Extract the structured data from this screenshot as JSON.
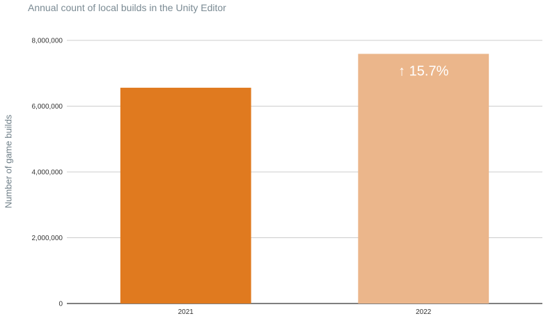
{
  "chart_data": {
    "type": "bar",
    "title": "Annual count of local builds in the Unity Editor",
    "xlabel": "",
    "ylabel": "Number of game builds",
    "categories": [
      "2021",
      "2022"
    ],
    "values": [
      6560000,
      7590000
    ],
    "bar_colors": [
      "#e07a1f",
      "#ebb68b"
    ],
    "annotations": [
      {
        "category": "2022",
        "text": "↑ 15.7%"
      }
    ],
    "ylim": [
      0,
      8000000
    ],
    "yticks": [
      0,
      2000000,
      4000000,
      6000000,
      8000000
    ],
    "ytick_labels": [
      "0",
      "2,000,000",
      "4,000,000",
      "6,000,000",
      "8,000,000"
    ],
    "grid": true,
    "legend": "none"
  },
  "colors": {
    "grid": "#cccccc",
    "axis": "#333333",
    "annotation_text": "#ffffff"
  }
}
